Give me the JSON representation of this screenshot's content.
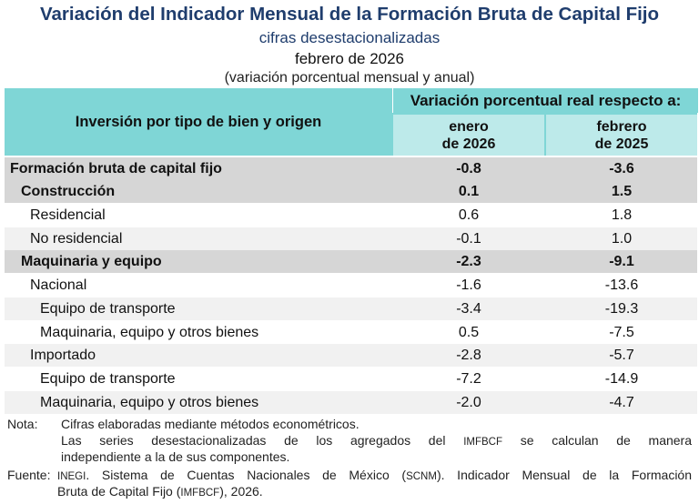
{
  "header": {
    "title": "Variación del Indicador Mensual de la Formación Bruta de Capital Fijo",
    "subtitle": "cifras desestacionalizadas",
    "period": "febrero de 2026",
    "note": "(variación porcentual mensual y anual)"
  },
  "table": {
    "row_header": "Inversión por tipo de bien y origen",
    "group_header": "Variación porcentual real respecto a:",
    "col1_line1": "enero",
    "col1_line2": "de 2026",
    "col2_line1": "febrero",
    "col2_line2": "de 2025",
    "rows": [
      {
        "label": "Formación bruta de capital fijo",
        "v1": "-0.8",
        "v2": "-3.6"
      },
      {
        "label": "Construcción",
        "v1": "0.1",
        "v2": "1.5"
      },
      {
        "label": "Residencial",
        "v1": "0.6",
        "v2": "1.8"
      },
      {
        "label": "No residencial",
        "v1": "-0.1",
        "v2": "1.0"
      },
      {
        "label": "Maquinaria y equipo",
        "v1": "-2.3",
        "v2": "-9.1"
      },
      {
        "label": "Nacional",
        "v1": "-1.6",
        "v2": "-13.6"
      },
      {
        "label": "Equipo de transporte",
        "v1": "-3.4",
        "v2": "-19.3"
      },
      {
        "label": "Maquinaria, equipo y otros bienes",
        "v1": "0.5",
        "v2": "-7.5"
      },
      {
        "label": "Importado",
        "v1": "-2.8",
        "v2": "-5.7"
      },
      {
        "label": "Equipo de transporte",
        "v1": "-7.2",
        "v2": "-14.9"
      },
      {
        "label": "Maquinaria, equipo y otros bienes",
        "v1": "-2.0",
        "v2": "-4.7"
      }
    ]
  },
  "notes": {
    "nota_tag": "Nota:",
    "nota_line1": "Cifras elaboradas mediante métodos econométricos.",
    "nota_line2a": "Las series desestacionalizadas de los agregados del",
    "nota_line2_abbr": "IMFBCF",
    "nota_line2b": "se calculan de manera",
    "nota_line3": "independiente a la de sus componentes.",
    "fuente_tag": "Fuente:",
    "fuente_abbr1": "INEGI",
    "fuente_line1a": ". Sistema de Cuentas Nacionales de México (",
    "fuente_abbr2": "SCNM",
    "fuente_line1b": "). Indicador Mensual de la Formación",
    "fuente_line2a": "Bruta de Capital Fijo (",
    "fuente_abbr3": "IMFBCF",
    "fuente_line2b": "), 2026."
  },
  "colors": {
    "title": "#1f3d6d",
    "header_teal": "#7fd6d6",
    "header_light_teal": "#bdeaea",
    "row_dark": "#d6d6d6",
    "row_light": "#f1f1f1"
  }
}
